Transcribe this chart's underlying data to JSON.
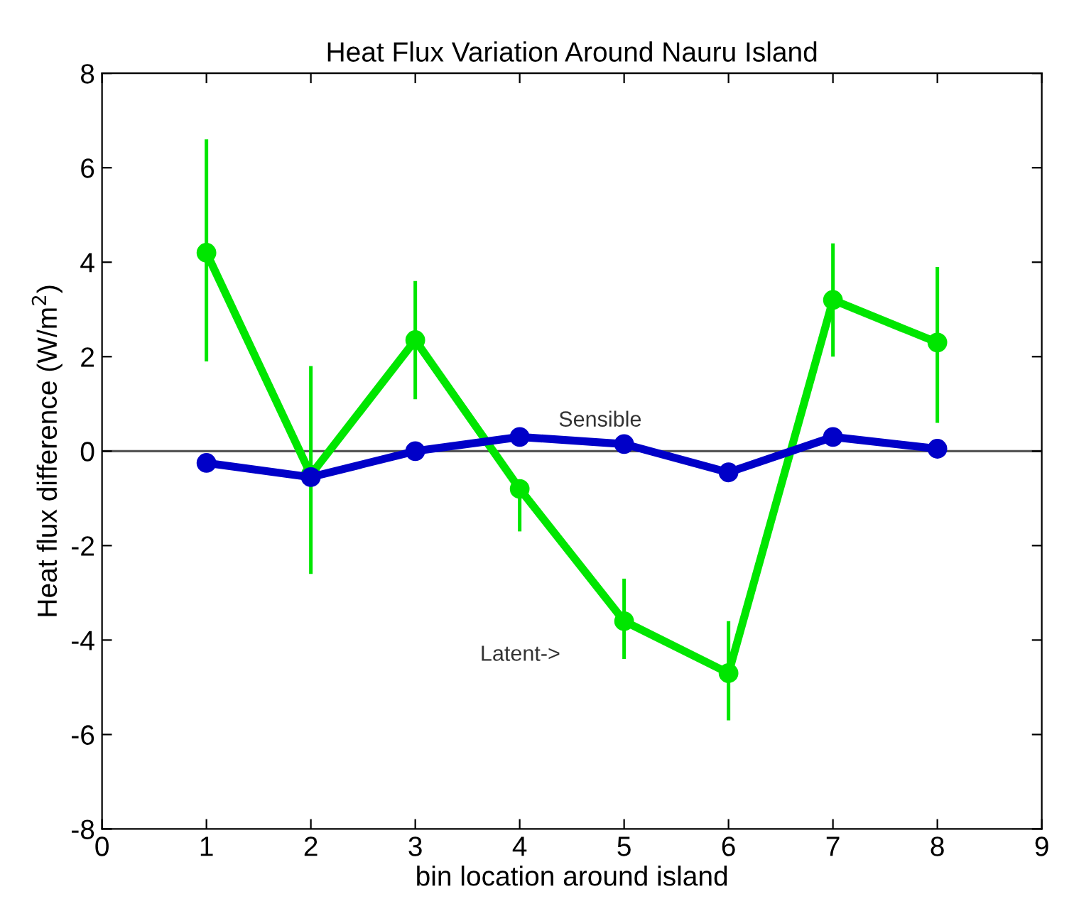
{
  "chart_data": {
    "type": "line",
    "title": "Heat Flux Variation Around Nauru Island",
    "xlabel": "bin location around island",
    "ylabel": "Heat flux difference (W/m$^{2}$)",
    "x": [
      1,
      2,
      3,
      4,
      5,
      6,
      7,
      8
    ],
    "series": [
      {
        "color": "#00e600",
        "values": [
          4.2,
          -0.5,
          2.35,
          -0.8,
          -3.6,
          -4.7,
          3.2,
          2.3
        ],
        "errors": [
          [
            1.9,
            6.6
          ],
          [
            -2.6,
            1.8
          ],
          [
            1.1,
            3.6
          ],
          [
            -1.7,
            -0.8
          ],
          [
            -4.4,
            -2.7
          ],
          [
            -5.7,
            -3.6
          ],
          [
            2.0,
            4.4
          ],
          [
            0.6,
            3.9
          ]
        ]
      },
      {
        "color": "#0000c8",
        "values": [
          -0.25,
          -0.55,
          0.0,
          0.3,
          0.15,
          -0.45,
          0.3,
          0.05
        ]
      }
    ],
    "xlim": [
      0,
      9
    ],
    "xticks": [
      0,
      1,
      2,
      3,
      4,
      5,
      6,
      7,
      8,
      9
    ],
    "ylim": [
      -8,
      8
    ],
    "yticks": [
      -8,
      -6,
      -4,
      -2,
      0,
      2,
      4,
      6,
      8
    ],
    "ref_lines": [
      {
        "axis": "y",
        "value": 0,
        "color": "#555555"
      }
    ],
    "annotations": [
      "Sensible",
      "Latent->"
    ],
    "marker": "circle",
    "line_style": "solid",
    "grid": false,
    "legend": false
  }
}
